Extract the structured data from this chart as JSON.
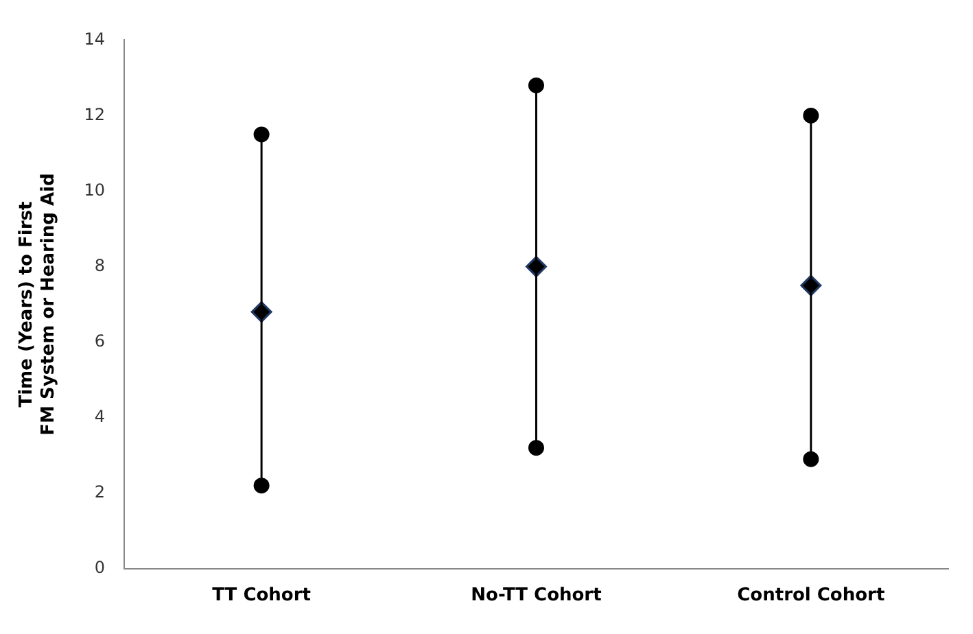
{
  "chart_data": {
    "type": "scatter",
    "ylabel": "Time (Years) to First\nFM System or Hearing Aid",
    "categories": [
      "TT Cohort",
      "No-TT Cohort",
      "Control Cohort"
    ],
    "series": [
      {
        "type": "line",
        "color": "#000000",
        "marker": "circle",
        "x": [
          "TT Cohort",
          "TT Cohort"
        ],
        "values": [
          2.2,
          11.5
        ]
      },
      {
        "type": "line",
        "color": "#000000",
        "marker": "circle",
        "x": [
          "No-TT Cohort",
          "No-TT Cohort"
        ],
        "values": [
          3.2,
          12.8
        ]
      },
      {
        "type": "line",
        "color": "#000000",
        "marker": "circle",
        "x": [
          "Control Cohort",
          "Control Cohort"
        ],
        "values": [
          2.9,
          12.0
        ]
      },
      {
        "color": "#000000",
        "marker": "diamond",
        "values": [
          6.8,
          8.0,
          7.5
        ]
      }
    ],
    "ylim": [
      0,
      14
    ],
    "yticks": [
      0,
      2,
      4,
      6,
      8,
      10,
      12,
      14
    ],
    "grid": false,
    "legend": false
  }
}
